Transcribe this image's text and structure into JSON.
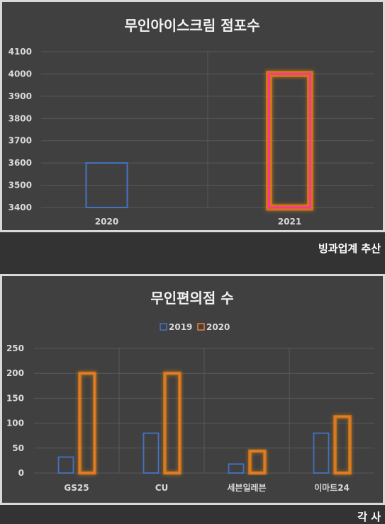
{
  "chart_data": [
    {
      "type": "bar",
      "title": "무인아이스크림 점포수",
      "categories": [
        "2020",
        "2021"
      ],
      "values": [
        3600,
        4000
      ],
      "ylim": [
        3400,
        4100
      ],
      "yticks": [
        3400,
        3500,
        3600,
        3700,
        3800,
        3900,
        4000,
        4100
      ],
      "grid": true,
      "bar_colors": [
        "#4472c4",
        "#ff3399"
      ],
      "glow_color": "#ff8c00"
    },
    {
      "type": "bar",
      "title": "무인편의점 수",
      "categories": [
        "GS25",
        "CU",
        "세븐일레븐",
        "이마트24"
      ],
      "series": [
        {
          "name": "2019",
          "values": [
            32,
            80,
            18,
            80
          ],
          "color": "#4472c4"
        },
        {
          "name": "2020",
          "values": [
            200,
            200,
            44,
            113
          ],
          "color": "#ed7d31"
        }
      ],
      "ylim": [
        0,
        250
      ],
      "yticks": [
        0,
        50,
        100,
        150,
        200,
        250
      ],
      "grid": true,
      "legend": "top"
    }
  ],
  "sources": [
    "빙과업계 추산",
    "각 사"
  ]
}
